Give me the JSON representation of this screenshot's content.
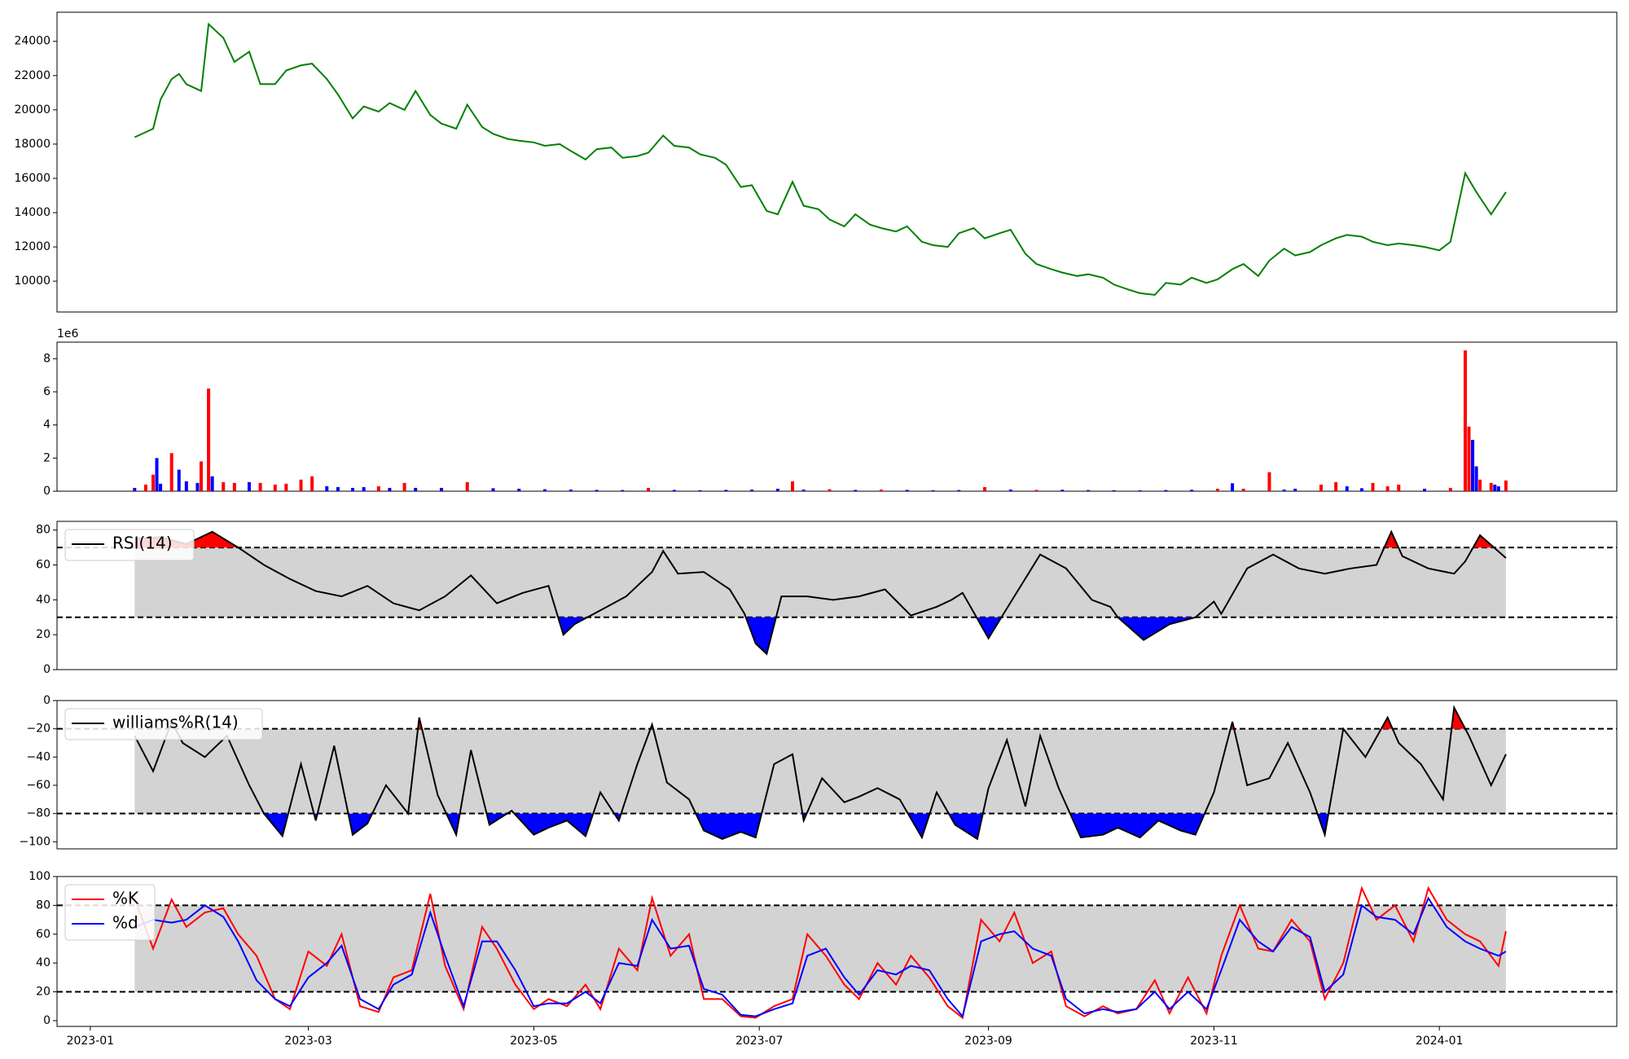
{
  "chart_data": [
    {
      "type": "line",
      "panel": "price",
      "color": "#008000",
      "ylim": [
        8200,
        25700
      ],
      "yticks": [
        "10000",
        "12000",
        "14000",
        "16000",
        "18000",
        "20000",
        "22000",
        "24000"
      ],
      "grid": false,
      "x": [
        "2023-01-13",
        "2023-01-18",
        "2023-01-20",
        "2023-01-23",
        "2023-01-25",
        "2023-01-27",
        "2023-01-31",
        "2023-02-02",
        "2023-02-06",
        "2023-02-09",
        "2023-02-13",
        "2023-02-16",
        "2023-02-20",
        "2023-02-23",
        "2023-02-27",
        "2023-03-02",
        "2023-03-06",
        "2023-03-09",
        "2023-03-13",
        "2023-03-16",
        "2023-03-20",
        "2023-03-23",
        "2023-03-27",
        "2023-03-30",
        "2023-04-03",
        "2023-04-06",
        "2023-04-10",
        "2023-04-13",
        "2023-04-17",
        "2023-04-20",
        "2023-04-24",
        "2023-04-27",
        "2023-05-01",
        "2023-05-04",
        "2023-05-08",
        "2023-05-11",
        "2023-05-15",
        "2023-05-18",
        "2023-05-22",
        "2023-05-25",
        "2023-05-29",
        "2023-06-01",
        "2023-06-05",
        "2023-06-08",
        "2023-06-12",
        "2023-06-15",
        "2023-06-19",
        "2023-06-22",
        "2023-06-26",
        "2023-06-29",
        "2023-07-03",
        "2023-07-06",
        "2023-07-10",
        "2023-07-13",
        "2023-07-17",
        "2023-07-20",
        "2023-07-24",
        "2023-07-27",
        "2023-07-31",
        "2023-08-03",
        "2023-08-07",
        "2023-08-10",
        "2023-08-14",
        "2023-08-17",
        "2023-08-21",
        "2023-08-24",
        "2023-08-28",
        "2023-08-31",
        "2023-09-04",
        "2023-09-07",
        "2023-09-11",
        "2023-09-14",
        "2023-09-18",
        "2023-09-21",
        "2023-09-25",
        "2023-09-28",
        "2023-10-02",
        "2023-10-05",
        "2023-10-09",
        "2023-10-12",
        "2023-10-16",
        "2023-10-19",
        "2023-10-23",
        "2023-10-26",
        "2023-10-30",
        "2023-11-02",
        "2023-11-06",
        "2023-11-09",
        "2023-11-13",
        "2023-11-16",
        "2023-11-20",
        "2023-11-23",
        "2023-11-27",
        "2023-11-30",
        "2023-12-04",
        "2023-12-07",
        "2023-12-11",
        "2023-12-14",
        "2023-12-18",
        "2023-12-21",
        "2023-12-25",
        "2023-12-28",
        "2024-01-01",
        "2024-01-04",
        "2024-01-08",
        "2024-01-11",
        "2024-01-15",
        "2024-01-19"
      ],
      "values": [
        18400,
        18900,
        20600,
        21800,
        22100,
        21500,
        21100,
        25000,
        24200,
        22800,
        23400,
        21500,
        21500,
        22300,
        22600,
        22700,
        21800,
        20900,
        19500,
        20200,
        19900,
        20400,
        20000,
        21100,
        19700,
        19200,
        18900,
        20300,
        19000,
        18600,
        18300,
        18200,
        18100,
        17900,
        18000,
        17600,
        17100,
        17700,
        17800,
        17200,
        17300,
        17500,
        18500,
        17900,
        17800,
        17400,
        17200,
        16800,
        15500,
        15600,
        14100,
        13900,
        15800,
        14400,
        14200,
        13600,
        13200,
        13900,
        13300,
        13100,
        12900,
        13200,
        12300,
        12100,
        12000,
        12800,
        13100,
        12500,
        12800,
        13000,
        11600,
        11000,
        10700,
        10500,
        10300,
        10400,
        10200,
        9800,
        9500,
        9300,
        9200,
        9900,
        9800,
        10200,
        9900,
        10100,
        10700,
        11000,
        10300,
        11200,
        11900,
        11500,
        11700,
        12100,
        12500,
        12700,
        12600,
        12300,
        12100,
        12200,
        12100,
        12000,
        11800,
        12300,
        16300,
        15200,
        13900,
        15200
      ]
    },
    {
      "type": "bar",
      "panel": "volume",
      "offset_label": "1e6",
      "ylim": [
        0,
        9000000
      ],
      "yticks": [
        "0",
        "2",
        "4",
        "6",
        "8"
      ],
      "colors": {
        "up": "#ff0000",
        "down": "#0000ff"
      },
      "x": [
        "2023-01-13",
        "2023-01-16",
        "2023-01-18",
        "2023-01-19",
        "2023-01-20",
        "2023-01-23",
        "2023-01-25",
        "2023-01-27",
        "2023-01-30",
        "2023-01-31",
        "2023-02-02",
        "2023-02-03",
        "2023-02-06",
        "2023-02-09",
        "2023-02-13",
        "2023-02-16",
        "2023-02-20",
        "2023-02-23",
        "2023-02-27",
        "2023-03-02",
        "2023-03-06",
        "2023-03-09",
        "2023-03-13",
        "2023-03-16",
        "2023-03-20",
        "2023-03-23",
        "2023-03-27",
        "2023-03-30",
        "2023-04-06",
        "2023-04-13",
        "2023-04-20",
        "2023-04-27",
        "2023-05-04",
        "2023-05-11",
        "2023-05-18",
        "2023-05-25",
        "2023-06-01",
        "2023-06-08",
        "2023-06-15",
        "2023-06-22",
        "2023-06-29",
        "2023-07-06",
        "2023-07-10",
        "2023-07-13",
        "2023-07-20",
        "2023-07-27",
        "2023-08-03",
        "2023-08-10",
        "2023-08-17",
        "2023-08-24",
        "2023-08-31",
        "2023-09-07",
        "2023-09-14",
        "2023-09-21",
        "2023-09-28",
        "2023-10-05",
        "2023-10-12",
        "2023-10-19",
        "2023-10-26",
        "2023-11-02",
        "2023-11-06",
        "2023-11-09",
        "2023-11-16",
        "2023-11-20",
        "2023-11-23",
        "2023-11-30",
        "2023-12-04",
        "2023-12-07",
        "2023-12-11",
        "2023-12-14",
        "2023-12-18",
        "2023-12-21",
        "2023-12-28",
        "2024-01-04",
        "2024-01-08",
        "2024-01-09",
        "2024-01-10",
        "2024-01-11",
        "2024-01-12",
        "2024-01-15",
        "2024-01-16",
        "2024-01-17",
        "2024-01-19"
      ],
      "values": [
        200000,
        400000,
        1000000,
        2000000,
        450000,
        2300000,
        1300000,
        600000,
        500000,
        1800000,
        6200000,
        900000,
        550000,
        500000,
        550000,
        500000,
        400000,
        450000,
        700000,
        900000,
        300000,
        250000,
        200000,
        250000,
        300000,
        200000,
        500000,
        200000,
        200000,
        550000,
        180000,
        150000,
        120000,
        100000,
        80000,
        70000,
        200000,
        80000,
        60000,
        80000,
        100000,
        150000,
        600000,
        100000,
        120000,
        80000,
        100000,
        80000,
        60000,
        70000,
        250000,
        100000,
        80000,
        90000,
        70000,
        60000,
        50000,
        70000,
        90000,
        150000,
        480000,
        150000,
        1150000,
        100000,
        150000,
        400000,
        550000,
        300000,
        180000,
        500000,
        300000,
        400000,
        150000,
        200000,
        8500000,
        3900000,
        3100000,
        1500000,
        700000,
        500000,
        400000,
        300000,
        650000
      ],
      "direction": [
        "down",
        "up",
        "up",
        "down",
        "down",
        "up",
        "down",
        "down",
        "down",
        "up",
        "up",
        "down",
        "up",
        "up",
        "down",
        "up",
        "up",
        "up",
        "up",
        "up",
        "down",
        "down",
        "down",
        "down",
        "up",
        "down",
        "up",
        "down",
        "down",
        "up",
        "down",
        "down",
        "down",
        "down",
        "down",
        "down",
        "up",
        "down",
        "down",
        "down",
        "down",
        "down",
        "up",
        "down",
        "up",
        "down",
        "up",
        "down",
        "down",
        "down",
        "up",
        "down",
        "up",
        "down",
        "down",
        "down",
        "down",
        "down",
        "down",
        "up",
        "down",
        "up",
        "up",
        "down",
        "down",
        "up",
        "up",
        "down",
        "down",
        "up",
        "up",
        "up",
        "down",
        "up",
        "up",
        "up",
        "down",
        "down",
        "up",
        "up",
        "down",
        "down",
        "up"
      ]
    },
    {
      "type": "line",
      "panel": "rsi",
      "series": [
        {
          "name": "RSI(14)",
          "color": "#000000"
        }
      ],
      "ylim": [
        0,
        85
      ],
      "yticks": [
        "0",
        "20",
        "40",
        "60",
        "80"
      ],
      "levels": [
        70,
        30
      ],
      "fills": {
        "band": "#d3d3d3",
        "over": "#ff0000",
        "under": "#0000ff"
      },
      "x": [
        "2023-01-13",
        "2023-01-20",
        "2023-01-27",
        "2023-02-03",
        "2023-02-10",
        "2023-02-17",
        "2023-02-24",
        "2023-03-03",
        "2023-03-10",
        "2023-03-17",
        "2023-03-24",
        "2023-03-31",
        "2023-04-07",
        "2023-04-14",
        "2023-04-21",
        "2023-04-28",
        "2023-05-05",
        "2023-05-09",
        "2023-05-12",
        "2023-05-19",
        "2023-05-26",
        "2023-06-02",
        "2023-06-05",
        "2023-06-09",
        "2023-06-16",
        "2023-06-23",
        "2023-06-27",
        "2023-06-30",
        "2023-07-03",
        "2023-07-07",
        "2023-07-14",
        "2023-07-21",
        "2023-07-28",
        "2023-08-04",
        "2023-08-11",
        "2023-08-18",
        "2023-08-22",
        "2023-08-25",
        "2023-09-01",
        "2023-09-08",
        "2023-09-15",
        "2023-09-22",
        "2023-09-29",
        "2023-10-04",
        "2023-10-06",
        "2023-10-13",
        "2023-10-20",
        "2023-10-27",
        "2023-11-01",
        "2023-11-03",
        "2023-11-10",
        "2023-11-17",
        "2023-11-24",
        "2023-12-01",
        "2023-12-08",
        "2023-12-15",
        "2023-12-19",
        "2023-12-22",
        "2023-12-29",
        "2024-01-05",
        "2024-01-08",
        "2024-01-12",
        "2024-01-19"
      ],
      "values": [
        75,
        76,
        72,
        79,
        70,
        60,
        52,
        45,
        42,
        48,
        38,
        34,
        42,
        54,
        38,
        44,
        48,
        20,
        26,
        34,
        42,
        56,
        68,
        55,
        56,
        46,
        32,
        15,
        9,
        42,
        42,
        40,
        42,
        46,
        31,
        36,
        40,
        44,
        18,
        42,
        66,
        58,
        40,
        36,
        30,
        17,
        26,
        30,
        39,
        32,
        58,
        66,
        58,
        55,
        58,
        60,
        79,
        65,
        58,
        55,
        62,
        77,
        64
      ]
    },
    {
      "type": "line",
      "panel": "williams",
      "series": [
        {
          "name": "williams%R(14)",
          "color": "#000000"
        }
      ],
      "ylim": [
        -105,
        0
      ],
      "yticks": [
        "0",
        "−20",
        "−40",
        "−60",
        "−80",
        "−100"
      ],
      "levels": [
        -20,
        -80
      ],
      "fills": {
        "band": "#d3d3d3",
        "over": "#ff0000",
        "under": "#0000ff"
      },
      "x": [
        "2023-01-13",
        "2023-01-18",
        "2023-01-23",
        "2023-01-26",
        "2023-02-01",
        "2023-02-07",
        "2023-02-13",
        "2023-02-17",
        "2023-02-22",
        "2023-02-27",
        "2023-03-03",
        "2023-03-08",
        "2023-03-13",
        "2023-03-17",
        "2023-03-22",
        "2023-03-28",
        "2023-03-31",
        "2023-04-05",
        "2023-04-10",
        "2023-04-14",
        "2023-04-19",
        "2023-04-25",
        "2023-05-01",
        "2023-05-05",
        "2023-05-10",
        "2023-05-15",
        "2023-05-19",
        "2023-05-24",
        "2023-05-29",
        "2023-06-02",
        "2023-06-06",
        "2023-06-12",
        "2023-06-16",
        "2023-06-21",
        "2023-06-26",
        "2023-06-30",
        "2023-07-05",
        "2023-07-10",
        "2023-07-13",
        "2023-07-18",
        "2023-07-24",
        "2023-07-28",
        "2023-08-02",
        "2023-08-08",
        "2023-08-14",
        "2023-08-18",
        "2023-08-23",
        "2023-08-29",
        "2023-09-01",
        "2023-09-06",
        "2023-09-11",
        "2023-09-15",
        "2023-09-20",
        "2023-09-26",
        "2023-10-02",
        "2023-10-06",
        "2023-10-12",
        "2023-10-17",
        "2023-10-23",
        "2023-10-27",
        "2023-11-01",
        "2023-11-06",
        "2023-11-10",
        "2023-11-16",
        "2023-11-21",
        "2023-11-27",
        "2023-12-01",
        "2023-12-06",
        "2023-12-12",
        "2023-12-18",
        "2023-12-21",
        "2023-12-27",
        "2024-01-02",
        "2024-01-05",
        "2024-01-09",
        "2024-01-15",
        "2024-01-19"
      ],
      "values": [
        -25,
        -50,
        -15,
        -30,
        -40,
        -25,
        -60,
        -80,
        -96,
        -45,
        -85,
        -32,
        -95,
        -87,
        -60,
        -80,
        -12,
        -67,
        -95,
        -35,
        -88,
        -78,
        -95,
        -90,
        -85,
        -96,
        -65,
        -85,
        -45,
        -17,
        -58,
        -70,
        -92,
        -98,
        -93,
        -97,
        -45,
        -38,
        -85,
        -55,
        -72,
        -68,
        -62,
        -70,
        -97,
        -65,
        -88,
        -98,
        -62,
        -28,
        -75,
        -25,
        -62,
        -97,
        -95,
        -90,
        -97,
        -85,
        -92,
        -95,
        -65,
        -15,
        -60,
        -55,
        -30,
        -65,
        -95,
        -20,
        -40,
        -12,
        -30,
        -45,
        -70,
        -5,
        -25,
        -60,
        -38
      ]
    },
    {
      "type": "line",
      "panel": "stochastic",
      "series": [
        {
          "name": "%K",
          "color": "#ff0000"
        },
        {
          "name": "%d",
          "color": "#0000ff"
        }
      ],
      "ylim": [
        -4,
        100
      ],
      "yticks": [
        "0",
        "20",
        "40",
        "60",
        "80",
        "100"
      ],
      "levels": [
        80,
        20
      ],
      "fills": {
        "band": "#d3d3d3"
      },
      "xticks": [
        "2023-01",
        "2023-03",
        "2023-05",
        "2023-07",
        "2023-09",
        "2023-11",
        "2024-01"
      ],
      "x": [
        "2023-01-13",
        "2023-01-18",
        "2023-01-23",
        "2023-01-27",
        "2023-02-01",
        "2023-02-06",
        "2023-02-10",
        "2023-02-15",
        "2023-02-20",
        "2023-02-24",
        "2023-03-01",
        "2023-03-06",
        "2023-03-10",
        "2023-03-15",
        "2023-03-20",
        "2023-03-24",
        "2023-03-29",
        "2023-04-03",
        "2023-04-07",
        "2023-04-12",
        "2023-04-17",
        "2023-04-21",
        "2023-04-26",
        "2023-05-01",
        "2023-05-05",
        "2023-05-10",
        "2023-05-15",
        "2023-05-19",
        "2023-05-24",
        "2023-05-29",
        "2023-06-02",
        "2023-06-07",
        "2023-06-12",
        "2023-06-16",
        "2023-06-21",
        "2023-06-26",
        "2023-06-30",
        "2023-07-05",
        "2023-07-10",
        "2023-07-14",
        "2023-07-19",
        "2023-07-24",
        "2023-07-28",
        "2023-08-02",
        "2023-08-07",
        "2023-08-11",
        "2023-08-16",
        "2023-08-21",
        "2023-08-25",
        "2023-08-30",
        "2023-09-04",
        "2023-09-08",
        "2023-09-13",
        "2023-09-18",
        "2023-09-22",
        "2023-09-27",
        "2023-10-02",
        "2023-10-06",
        "2023-10-11",
        "2023-10-16",
        "2023-10-20",
        "2023-10-25",
        "2023-10-30",
        "2023-11-03",
        "2023-11-08",
        "2023-11-13",
        "2023-11-17",
        "2023-11-22",
        "2023-11-27",
        "2023-12-01",
        "2023-12-06",
        "2023-12-11",
        "2023-12-15",
        "2023-12-20",
        "2023-12-25",
        "2023-12-29",
        "2024-01-03",
        "2024-01-08",
        "2024-01-12",
        "2024-01-17",
        "2024-01-19"
      ],
      "values_k": [
        85,
        50,
        84,
        65,
        75,
        78,
        60,
        45,
        15,
        8,
        48,
        38,
        60,
        10,
        6,
        30,
        35,
        88,
        38,
        8,
        65,
        50,
        25,
        8,
        15,
        10,
        25,
        8,
        50,
        35,
        85,
        45,
        60,
        15,
        15,
        3,
        2,
        10,
        15,
        60,
        45,
        25,
        15,
        40,
        25,
        45,
        30,
        10,
        2,
        70,
        55,
        75,
        40,
        48,
        10,
        3,
        10,
        5,
        8,
        28,
        5,
        30,
        5,
        45,
        80,
        50,
        48,
        70,
        55,
        15,
        40,
        92,
        70,
        80,
        55,
        92,
        70,
        60,
        55,
        38,
        62
      ],
      "values_d": [
        65,
        70,
        68,
        70,
        80,
        72,
        55,
        28,
        15,
        10,
        30,
        40,
        52,
        15,
        8,
        25,
        32,
        75,
        45,
        10,
        55,
        55,
        35,
        10,
        12,
        12,
        20,
        12,
        40,
        38,
        70,
        50,
        52,
        22,
        18,
        4,
        3,
        8,
        12,
        45,
        50,
        30,
        18,
        35,
        32,
        38,
        35,
        15,
        3,
        55,
        60,
        62,
        50,
        45,
        15,
        5,
        8,
        6,
        8,
        20,
        8,
        20,
        8,
        35,
        70,
        55,
        48,
        65,
        58,
        20,
        32,
        80,
        72,
        70,
        60,
        85,
        65,
        55,
        50,
        45,
        48
      ]
    }
  ]
}
